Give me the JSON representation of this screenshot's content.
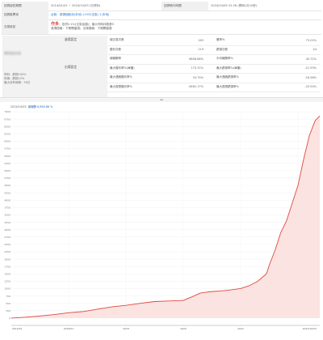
{
  "top": {
    "row1": {
      "label_a": "回測起訖期間",
      "value_a": "2014/01/01 ~ 2024/10/03 (日資料)",
      "label_b": "回測執行時間",
      "value_b": "2024/10/09 22:28 (費時1分10秒)"
    },
    "row2": {
      "label": "回測股票池",
      "value": "台股：優選個股池(本地) (1932支股) 1(本地)"
    },
    "row3": {
      "label": "交易設定",
      "tag": "作多",
      "line1": "；投資0.1%(交易金額)；最大同時持股數5",
      "line2": "進場價格：下期開盤價；出場價格：下期開盤價"
    }
  },
  "sidebar": {
    "entry_title": "進場設定",
    "blurred_text": "條件設定內容",
    "exit_title": "出場設定",
    "exit_lines": [
      "停利：虧損100%",
      "停損：虧損10%",
      "最大持有時間：90日"
    ]
  },
  "stats": {
    "rows": [
      {
        "l1": "總交易次數",
        "v1": "163",
        "l2": "勝率%",
        "v2": "73.01%",
        "v2_red": true
      },
      {
        "l1": "獲利次數",
        "v1": "119",
        "l2": "虧損次數",
        "v2": "44",
        "v2_red": false
      },
      {
        "l1": "總報酬率",
        "v1": "6858.86%",
        "v1_red": true,
        "l2": "平均報酬率%",
        "v2": "40.72%",
        "v2_red": false
      },
      {
        "l1": "最大獲利率%(單筆)",
        "v1": "175.31%",
        "l2": "最大虧損率%(單筆)",
        "v2": "-21.93%",
        "v2_red": false
      },
      {
        "l1": "最大連續獲利率%",
        "v1": "34.75%",
        "l2": "最大連續虧損率%",
        "v2": "-16.58%",
        "v2_red": false
      },
      {
        "l1": "最大區間獲利率%",
        "v1": "6462.17%",
        "l2": "最大區間虧損率%",
        "v2": "-20.54%",
        "v2_red": false
      }
    ]
  },
  "chart_header": {
    "date": "2024/10/03",
    "series_label": "總報酬",
    "series_value": "6,858.86 %"
  },
  "chart_data": {
    "type": "area",
    "x_tick_labels": [
      "2016/01",
      "2018",
      "2020",
      "2022",
      "2024/10/03"
    ],
    "x_start_label": "2014/01",
    "y_ticks": [
      0,
      250,
      500,
      750,
      1000,
      1250,
      1500,
      1750,
      2000,
      2250,
      2500,
      2750,
      3000,
      3250,
      3500,
      3750,
      4000,
      4250,
      4500,
      4750,
      5000,
      5250,
      5500,
      5750,
      6000,
      6250,
      6500,
      6750,
      7000
    ],
    "ylim": [
      -250,
      7000
    ],
    "x_years": [
      2014.0,
      2014.5,
      2015.0,
      2015.5,
      2016.0,
      2016.5,
      2017.0,
      2017.5,
      2018.0,
      2018.5,
      2019.0,
      2019.5,
      2020.0,
      2020.3,
      2020.6,
      2021.0,
      2021.3,
      2021.6,
      2022.0,
      2022.3,
      2022.6,
      2022.9,
      2023.0,
      2023.2,
      2023.4,
      2023.6,
      2023.8,
      2024.0,
      2024.2,
      2024.4,
      2024.6,
      2024.76
    ],
    "values": [
      0,
      30,
      70,
      120,
      180,
      220,
      300,
      380,
      430,
      500,
      560,
      580,
      600,
      720,
      850,
      900,
      920,
      950,
      1000,
      1100,
      1250,
      1500,
      1800,
      2300,
      2900,
      3300,
      3900,
      4500,
      5400,
      6200,
      6700,
      6858.86
    ],
    "xlim": [
      2014.0,
      2024.76
    ],
    "grid": true,
    "area_color": "#fbe3e1",
    "line_color_up": "#e0483e",
    "line_color_down": "#2b7bd6",
    "accent": "#2a6ebd"
  }
}
